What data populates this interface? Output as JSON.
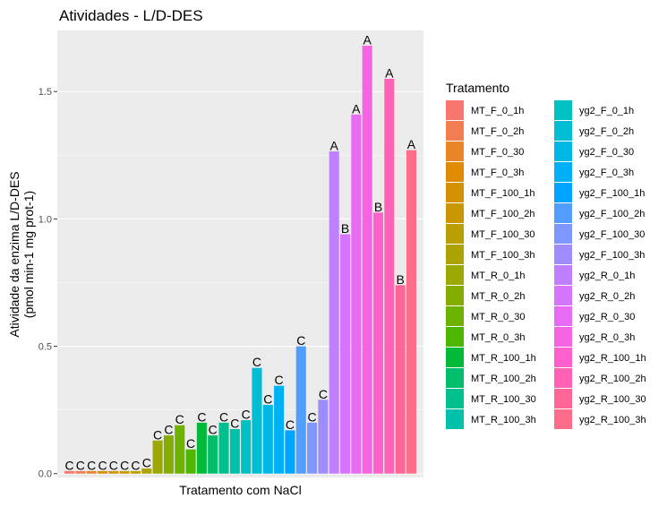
{
  "chart_data": {
    "type": "bar",
    "title": "Atividades - L/D-DES",
    "xlabel": "Tratamento com NaCl",
    "ylabel_line1": "Atividade da enzima L/D-DES",
    "ylabel_line2": "(pmol min-1 mg prot-1)",
    "ylim": [
      -0.015,
      1.74
    ],
    "yticks": [
      0.0,
      0.5,
      1.0,
      1.5
    ],
    "ytick_labels": [
      "0.0",
      "0.5",
      "1.0",
      "1.5"
    ],
    "grid": true,
    "legend_title": "Tratamento",
    "legend_position": "right",
    "categories": [
      "MT_F_0_1h",
      "MT_F_0_2h",
      "MT_F_0_30",
      "MT_F_0_3h",
      "MT_F_100_1h",
      "MT_F_100_2h",
      "MT_F_100_30",
      "MT_F_100_3h",
      "MT_R_0_1h",
      "MT_R_0_2h",
      "MT_R_0_30",
      "MT_R_0_3h",
      "MT_R_100_1h",
      "MT_R_100_2h",
      "MT_R_100_30",
      "MT_R_100_3h",
      "yg2_F_0_1h",
      "yg2_F_0_2h",
      "yg2_F_0_30",
      "yg2_F_0_3h",
      "yg2_F_100_1h",
      "yg2_F_100_2h",
      "yg2_F_100_30",
      "yg2_F_100_3h",
      "yg2_R_0_1h",
      "yg2_R_0_2h",
      "yg2_R_0_30",
      "yg2_R_0_3h",
      "yg2_R_100_1h",
      "yg2_R_100_2h",
      "yg2_R_100_30",
      "yg2_R_100_3h"
    ],
    "values": [
      0.01,
      0.01,
      0.01,
      0.01,
      0.01,
      0.01,
      0.01,
      0.02,
      0.13,
      0.15,
      0.19,
      0.095,
      0.2,
      0.15,
      0.2,
      0.175,
      0.21,
      0.415,
      0.27,
      0.345,
      0.17,
      0.5,
      0.2,
      0.29,
      1.265,
      0.94,
      1.41,
      1.68,
      1.025,
      1.55,
      0.74,
      1.27
    ],
    "labels": [
      "C",
      "C",
      "C",
      "C",
      "C",
      "C",
      "C",
      "C",
      "C",
      "C",
      "C",
      "C",
      "C",
      "C",
      "C",
      "C",
      "C",
      "C",
      "C",
      "C",
      "C",
      "C",
      "C",
      "C",
      "A",
      "B",
      "A",
      "A",
      "B",
      "A",
      "B",
      "A"
    ],
    "colors": [
      "#F8766D",
      "#F17D51",
      "#E98427",
      "#E08B00",
      "#D49200",
      "#C99800",
      "#BB9E00",
      "#ACA300",
      "#9AA800",
      "#85AD00",
      "#6EB200",
      "#4FB600",
      "#00BA38",
      "#00BE6C",
      "#00C08D",
      "#00C1A9",
      "#00C1C1",
      "#00BDD4",
      "#00B8E5",
      "#00B0F4",
      "#00A5FF",
      "#529EFF",
      "#7F96FF",
      "#A18CFF",
      "#BE80FF",
      "#D575FE",
      "#E76BF3",
      "#F565E3",
      "#FF61CC",
      "#FF62B4",
      "#FF6698",
      "#FF6C89"
    ]
  }
}
